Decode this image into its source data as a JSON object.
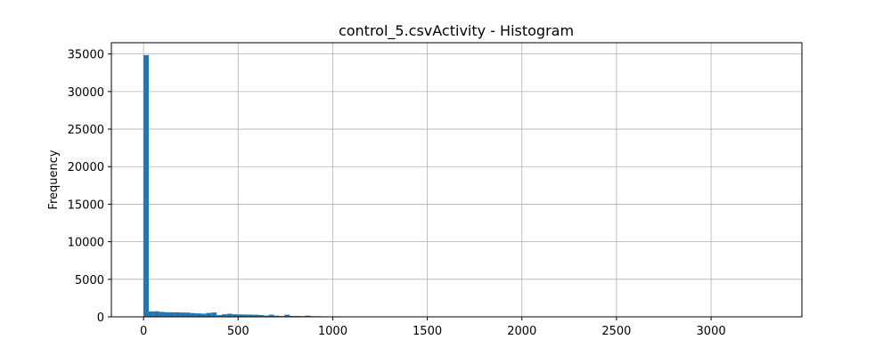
{
  "chart_data": {
    "type": "bar",
    "title": "control_5.csvActivity - Histogram",
    "xlabel": "",
    "ylabel": "Frequency",
    "xlim": [
      -170,
      3480
    ],
    "ylim": [
      0,
      36500
    ],
    "xticks": [
      0,
      500,
      1000,
      1500,
      2000,
      2500,
      3000
    ],
    "yticks": [
      0,
      5000,
      10000,
      15000,
      20000,
      25000,
      30000,
      35000
    ],
    "grid": true,
    "color": "#1f77b4",
    "bin_width": 27.6,
    "bin_start": 0,
    "values": [
      34850,
      720,
      740,
      660,
      620,
      600,
      610,
      580,
      560,
      500,
      460,
      420,
      520,
      580,
      230,
      340,
      410,
      340,
      320,
      310,
      300,
      280,
      240,
      170,
      280,
      150,
      110,
      280,
      120,
      110,
      100,
      160,
      90,
      80,
      70,
      60,
      70,
      60,
      50,
      50,
      40,
      40,
      30,
      20,
      10,
      30,
      30,
      30,
      30,
      0,
      10,
      0,
      0,
      0,
      0,
      0,
      0,
      0,
      0,
      0,
      0,
      0,
      0,
      0,
      0,
      0,
      0,
      0,
      0,
      0,
      0,
      0,
      0,
      0,
      0,
      0,
      0,
      0,
      0,
      0,
      0,
      0,
      0,
      0,
      0,
      0,
      0,
      0,
      0,
      0,
      0,
      0,
      0,
      0,
      0,
      0,
      0,
      0,
      0,
      0,
      0,
      0,
      0,
      0,
      0,
      0,
      0,
      0,
      0,
      0,
      0,
      0,
      0,
      0,
      0,
      0,
      0,
      0,
      1
    ]
  }
}
